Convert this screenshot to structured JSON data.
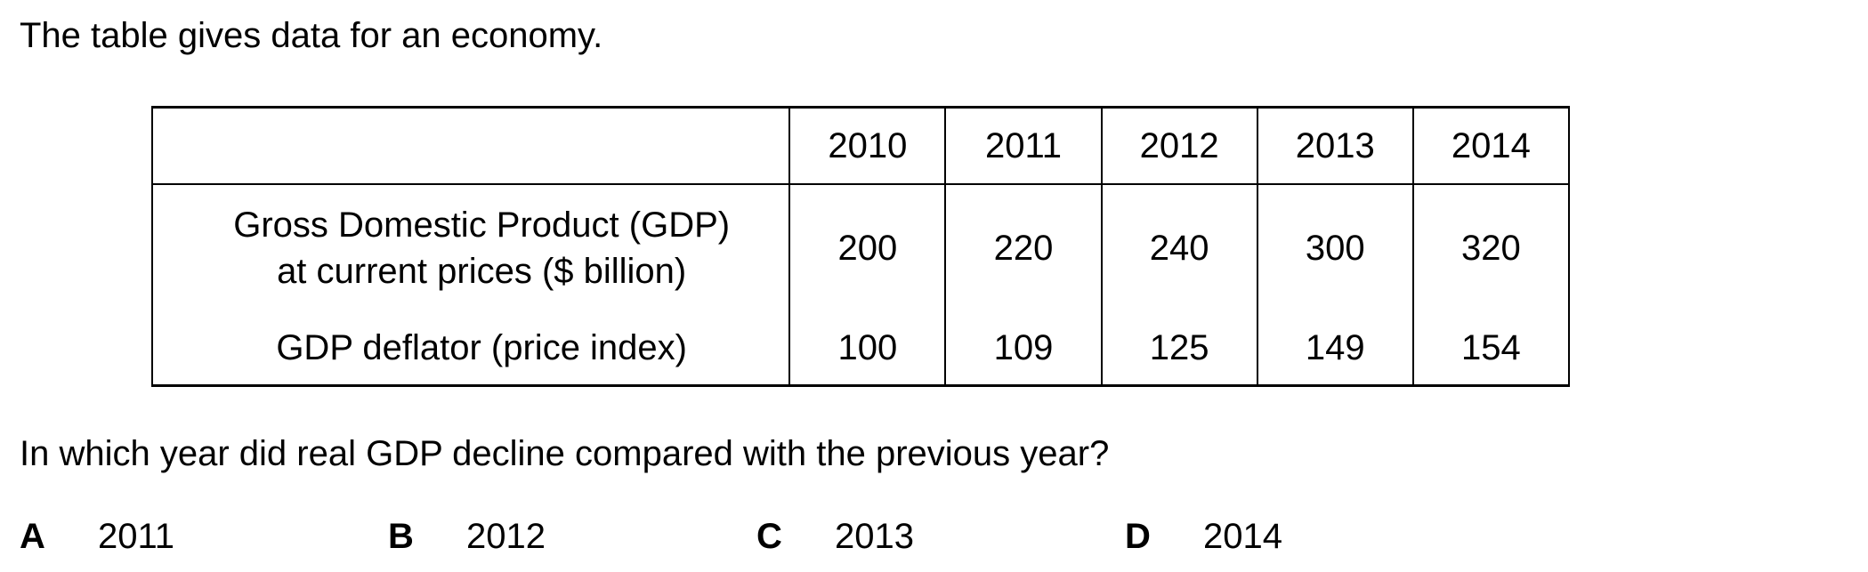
{
  "intro_text": "The table gives data for an economy.",
  "table": {
    "years": [
      "2010",
      "2011",
      "2012",
      "2013",
      "2014"
    ],
    "rows": [
      {
        "label_lines": [
          "Gross Domestic Product (GDP)",
          "at current prices ($ billion)"
        ],
        "values": [
          "200",
          "220",
          "240",
          "300",
          "320"
        ]
      },
      {
        "label_lines": [
          "GDP deflator (price index)"
        ],
        "values": [
          "100",
          "109",
          "125",
          "149",
          "154"
        ]
      }
    ]
  },
  "question": "In which year did real GDP decline compared with the previous year?",
  "options": [
    {
      "letter": "A",
      "text": "2011"
    },
    {
      "letter": "B",
      "text": "2012"
    },
    {
      "letter": "C",
      "text": "2013"
    },
    {
      "letter": "D",
      "text": "2014"
    }
  ]
}
